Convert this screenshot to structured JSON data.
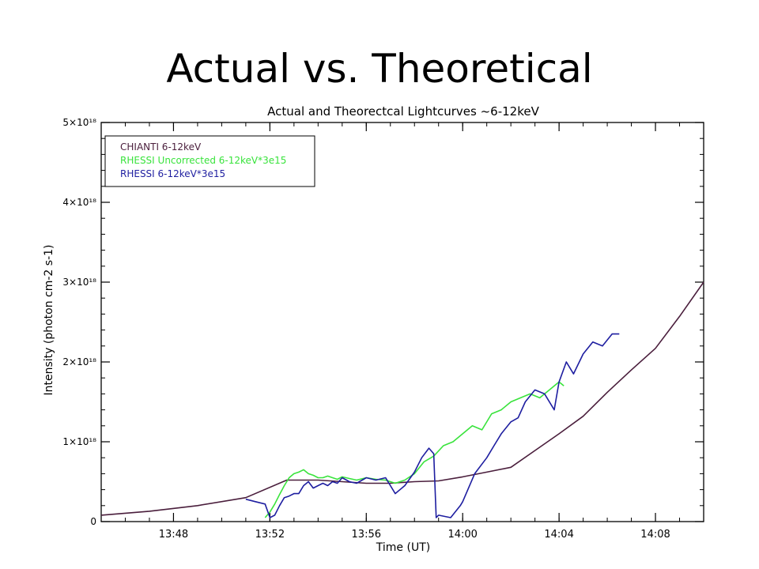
{
  "slide": {
    "title": "Actual vs. Theoretical"
  },
  "chart_data": {
    "type": "line",
    "title": "Actual and Theorectcal Lightcurves ~6-12keV",
    "xlabel": "Time (UT)",
    "ylabel": "Intensity (photon cm-2 s-1)",
    "x_unit": "minutes after 13:45 UT",
    "xlim": [
      0,
      25
    ],
    "ylim": [
      0,
      5e+18
    ],
    "grid": false,
    "legend_position": "top-left",
    "x_ticks": [
      {
        "value": 3,
        "label": "13:48"
      },
      {
        "value": 7,
        "label": "13:52"
      },
      {
        "value": 11,
        "label": "13:56"
      },
      {
        "value": 15,
        "label": "14:00"
      },
      {
        "value": 19,
        "label": "14:04"
      },
      {
        "value": 23,
        "label": "14:08"
      }
    ],
    "y_ticks": [
      {
        "value": 0,
        "label": "0"
      },
      {
        "value": 1e+18,
        "label": "1×10¹⁸"
      },
      {
        "value": 2e+18,
        "label": "2×10¹⁸"
      },
      {
        "value": 3e+18,
        "label": "3×10¹⁸"
      },
      {
        "value": 4e+18,
        "label": "4×10¹⁸"
      },
      {
        "value": 5e+18,
        "label": "5×10¹⁸"
      }
    ],
    "series": [
      {
        "name": "CHIANTI 6-12keV",
        "color": "#4a1e3c",
        "x": [
          0,
          2,
          4,
          6,
          7.7,
          9,
          10,
          11,
          12,
          13,
          14,
          15,
          16,
          17,
          18,
          19,
          20,
          21,
          22,
          23,
          24,
          25
        ],
        "y": [
          8e+16,
          1.3e+17,
          2e+17,
          3e+17,
          5.2e+17,
          5.2e+17,
          5e+17,
          4.8e+17,
          4.8e+17,
          5e+17,
          5.1e+17,
          5.6e+17,
          6.2e+17,
          6.8e+17,
          8.9e+17,
          1.1e+18,
          1.32e+18,
          1.62e+18,
          1.9e+18,
          2.17e+18,
          2.57e+18,
          3e+18
        ]
      },
      {
        "name": "RHESSI Uncorrected 6-12keV*3e15",
        "color": "#39e33c",
        "x": [
          6.8,
          7.0,
          7.2,
          7.4,
          7.6,
          7.8,
          8.0,
          8.2,
          8.4,
          8.6,
          8.8,
          9.0,
          9.2,
          9.4,
          9.6,
          9.8,
          10.0,
          10.3,
          10.6,
          11.0,
          11.4,
          11.8,
          12.2,
          12.6,
          13.0,
          13.4,
          13.8,
          14.2,
          14.6,
          15.0,
          15.4,
          15.8,
          16.2,
          16.6,
          17.0,
          17.4,
          17.8,
          18.2,
          18.6,
          19.0,
          19.2
        ],
        "y": [
          5e+16,
          1.2e+17,
          2.2e+17,
          3.4e+17,
          4.5e+17,
          5.5e+17,
          6e+17,
          6.2e+17,
          6.5e+17,
          6e+17,
          5.8e+17,
          5.5e+17,
          5.5e+17,
          5.7e+17,
          5.5e+17,
          5.3e+17,
          5.6e+17,
          5.4e+17,
          5.2e+17,
          5.5e+17,
          5.3e+17,
          5.2e+17,
          4.8e+17,
          5.2e+17,
          6e+17,
          7.5e+17,
          8.2e+17,
          9.5e+17,
          1e+18,
          1.1e+18,
          1.2e+18,
          1.15e+18,
          1.35e+18,
          1.4e+18,
          1.5e+18,
          1.55e+18,
          1.6e+18,
          1.55e+18,
          1.65e+18,
          1.75e+18,
          1.7e+18
        ]
      },
      {
        "name": "RHESSI 6-12keV*3e15",
        "color": "#1e1ea0",
        "x": [
          6.0,
          6.4,
          6.8,
          7.0,
          7.2,
          7.4,
          7.6,
          7.8,
          8.0,
          8.2,
          8.4,
          8.6,
          8.8,
          9.0,
          9.2,
          9.4,
          9.6,
          9.8,
          10.0,
          10.3,
          10.6,
          11.0,
          11.4,
          11.8,
          12.2,
          12.6,
          13.0,
          13.3,
          13.6,
          13.8,
          13.9,
          14.0,
          14.5,
          14.9,
          15.0,
          15.5,
          16.0,
          16.3,
          16.6,
          17.0,
          17.3,
          17.6,
          18.0,
          18.4,
          18.8,
          19.0,
          19.3,
          19.6,
          20.0,
          20.4,
          20.8,
          21.2,
          21.5
        ],
        "y": [
          2.8e+17,
          2.5e+17,
          2.2e+17,
          5e+16,
          8e+16,
          2e+17,
          3e+17,
          3.2e+17,
          3.5e+17,
          3.5e+17,
          4.5e+17,
          5e+17,
          4.2e+17,
          4.5e+17,
          4.8e+17,
          4.5e+17,
          5e+17,
          4.8e+17,
          5.5e+17,
          5e+17,
          4.8e+17,
          5.5e+17,
          5.2e+17,
          5.5e+17,
          3.5e+17,
          4.5e+17,
          6.2e+17,
          8e+17,
          9.2e+17,
          8.5e+17,
          5e+16,
          8e+16,
          5e+16,
          2e+17,
          2.5e+17,
          6e+17,
          8e+17,
          9.5e+17,
          1.1e+18,
          1.25e+18,
          1.3e+18,
          1.5e+18,
          1.65e+18,
          1.6e+18,
          1.4e+18,
          1.75e+18,
          2e+18,
          1.85e+18,
          2.1e+18,
          2.25e+18,
          2.2e+18,
          2.35e+18,
          2.35e+18
        ]
      }
    ]
  }
}
